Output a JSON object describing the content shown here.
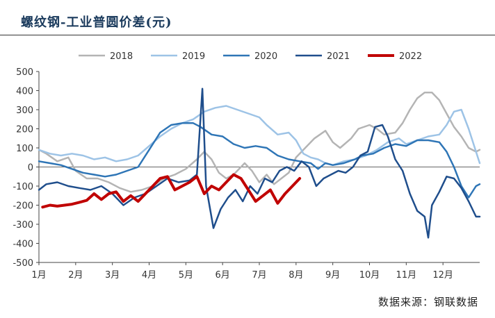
{
  "title": "螺纹钢-工业普圆价差(元)",
  "source": "数据来源：钢联数据",
  "chart_data": {
    "type": "line",
    "title": "螺纹钢-工业普圆价差(元)",
    "xlabel": "",
    "ylabel": "",
    "ylim": [
      -500,
      500
    ],
    "yticks": [
      "500",
      "400",
      "300",
      "200",
      "100",
      "0",
      "-100",
      "-200",
      "-300",
      "-400",
      "-500"
    ],
    "xlim": [
      1,
      13
    ],
    "xticks": [
      "1月",
      "2月",
      "3月",
      "4月",
      "5月",
      "6月",
      "7月",
      "8月",
      "9月",
      "10月",
      "11月",
      "12月"
    ],
    "grid": false,
    "legend_position": "top",
    "series": [
      {
        "name": "2018",
        "color": "#b4b4b4",
        "width": 2.5,
        "points": [
          [
            1.0,
            90
          ],
          [
            1.2,
            70
          ],
          [
            1.5,
            30
          ],
          [
            1.8,
            50
          ],
          [
            2.0,
            -20
          ],
          [
            2.3,
            -60
          ],
          [
            2.6,
            -60
          ],
          [
            2.9,
            -80
          ],
          [
            3.2,
            -110
          ],
          [
            3.5,
            -130
          ],
          [
            3.8,
            -120
          ],
          [
            4.1,
            -100
          ],
          [
            4.4,
            -60
          ],
          [
            4.7,
            -40
          ],
          [
            5.0,
            -10
          ],
          [
            5.3,
            40
          ],
          [
            5.5,
            80
          ],
          [
            5.7,
            40
          ],
          [
            5.9,
            -30
          ],
          [
            6.1,
            -60
          ],
          [
            6.3,
            -40
          ],
          [
            6.6,
            20
          ],
          [
            6.8,
            -20
          ],
          [
            7.0,
            -80
          ],
          [
            7.2,
            -40
          ],
          [
            7.4,
            -90
          ],
          [
            7.6,
            -60
          ],
          [
            7.8,
            -30
          ],
          [
            8.0,
            50
          ],
          [
            8.2,
            90
          ],
          [
            8.5,
            150
          ],
          [
            8.8,
            190
          ],
          [
            9.0,
            130
          ],
          [
            9.2,
            100
          ],
          [
            9.5,
            150
          ],
          [
            9.7,
            200
          ],
          [
            10.0,
            220
          ],
          [
            10.2,
            200
          ],
          [
            10.4,
            170
          ],
          [
            10.7,
            180
          ],
          [
            10.9,
            230
          ],
          [
            11.1,
            300
          ],
          [
            11.3,
            360
          ],
          [
            11.5,
            390
          ],
          [
            11.7,
            390
          ],
          [
            11.9,
            350
          ],
          [
            12.1,
            280
          ],
          [
            12.3,
            210
          ],
          [
            12.5,
            160
          ],
          [
            12.7,
            100
          ],
          [
            12.9,
            80
          ],
          [
            13.0,
            90
          ]
        ]
      },
      {
        "name": "2019",
        "color": "#9dc3e6",
        "width": 2.5,
        "points": [
          [
            1.0,
            90
          ],
          [
            1.3,
            70
          ],
          [
            1.6,
            60
          ],
          [
            1.9,
            70
          ],
          [
            2.2,
            60
          ],
          [
            2.5,
            40
          ],
          [
            2.8,
            50
          ],
          [
            3.1,
            30
          ],
          [
            3.4,
            40
          ],
          [
            3.7,
            60
          ],
          [
            4.0,
            110
          ],
          [
            4.3,
            160
          ],
          [
            4.6,
            200
          ],
          [
            4.9,
            230
          ],
          [
            5.2,
            250
          ],
          [
            5.5,
            290
          ],
          [
            5.8,
            310
          ],
          [
            6.1,
            320
          ],
          [
            6.4,
            300
          ],
          [
            6.7,
            280
          ],
          [
            7.0,
            260
          ],
          [
            7.2,
            220
          ],
          [
            7.5,
            170
          ],
          [
            7.8,
            180
          ],
          [
            8.0,
            140
          ],
          [
            8.2,
            70
          ],
          [
            8.4,
            50
          ],
          [
            8.6,
            40
          ],
          [
            8.8,
            20
          ],
          [
            9.0,
            10
          ],
          [
            9.3,
            30
          ],
          [
            9.6,
            40
          ],
          [
            9.9,
            60
          ],
          [
            10.2,
            90
          ],
          [
            10.5,
            130
          ],
          [
            10.8,
            150
          ],
          [
            11.0,
            120
          ],
          [
            11.3,
            140
          ],
          [
            11.6,
            160
          ],
          [
            11.9,
            170
          ],
          [
            12.1,
            220
          ],
          [
            12.3,
            290
          ],
          [
            12.5,
            300
          ],
          [
            12.7,
            200
          ],
          [
            12.9,
            80
          ],
          [
            13.0,
            20
          ]
        ]
      },
      {
        "name": "2020",
        "color": "#2e75b6",
        "width": 2.5,
        "points": [
          [
            1.0,
            30
          ],
          [
            1.3,
            20
          ],
          [
            1.6,
            10
          ],
          [
            1.9,
            -10
          ],
          [
            2.2,
            -30
          ],
          [
            2.5,
            -40
          ],
          [
            2.8,
            -50
          ],
          [
            3.1,
            -40
          ],
          [
            3.4,
            -20
          ],
          [
            3.7,
            0
          ],
          [
            4.0,
            90
          ],
          [
            4.3,
            180
          ],
          [
            4.6,
            220
          ],
          [
            4.9,
            230
          ],
          [
            5.2,
            230
          ],
          [
            5.4,
            210
          ],
          [
            5.7,
            170
          ],
          [
            6.0,
            160
          ],
          [
            6.3,
            120
          ],
          [
            6.6,
            100
          ],
          [
            6.9,
            110
          ],
          [
            7.2,
            100
          ],
          [
            7.5,
            60
          ],
          [
            7.8,
            40
          ],
          [
            8.1,
            30
          ],
          [
            8.4,
            20
          ],
          [
            8.6,
            -10
          ],
          [
            8.8,
            20
          ],
          [
            9.0,
            10
          ],
          [
            9.3,
            20
          ],
          [
            9.6,
            40
          ],
          [
            9.8,
            60
          ],
          [
            10.1,
            70
          ],
          [
            10.4,
            100
          ],
          [
            10.7,
            120
          ],
          [
            11.0,
            110
          ],
          [
            11.3,
            140
          ],
          [
            11.6,
            140
          ],
          [
            11.9,
            130
          ],
          [
            12.1,
            80
          ],
          [
            12.3,
            0
          ],
          [
            12.5,
            -100
          ],
          [
            12.7,
            -160
          ],
          [
            12.9,
            -100
          ],
          [
            13.0,
            -90
          ]
        ]
      },
      {
        "name": "2021",
        "color": "#1f4e8c",
        "width": 2.5,
        "points": [
          [
            1.0,
            -120
          ],
          [
            1.2,
            -90
          ],
          [
            1.5,
            -80
          ],
          [
            1.8,
            -100
          ],
          [
            2.1,
            -110
          ],
          [
            2.4,
            -120
          ],
          [
            2.7,
            -100
          ],
          [
            3.0,
            -140
          ],
          [
            3.3,
            -200
          ],
          [
            3.6,
            -160
          ],
          [
            3.9,
            -140
          ],
          [
            4.2,
            -100
          ],
          [
            4.5,
            -60
          ],
          [
            4.8,
            -80
          ],
          [
            5.1,
            -70
          ],
          [
            5.3,
            -40
          ],
          [
            5.45,
            410
          ],
          [
            5.55,
            -100
          ],
          [
            5.75,
            -320
          ],
          [
            5.95,
            -220
          ],
          [
            6.15,
            -160
          ],
          [
            6.35,
            -120
          ],
          [
            6.55,
            -180
          ],
          [
            6.75,
            -100
          ],
          [
            6.95,
            -140
          ],
          [
            7.15,
            -60
          ],
          [
            7.35,
            -80
          ],
          [
            7.55,
            -20
          ],
          [
            7.75,
            0
          ],
          [
            7.95,
            -20
          ],
          [
            8.15,
            30
          ],
          [
            8.35,
            0
          ],
          [
            8.55,
            -100
          ],
          [
            8.75,
            -60
          ],
          [
            8.95,
            -40
          ],
          [
            9.15,
            -20
          ],
          [
            9.35,
            -30
          ],
          [
            9.55,
            0
          ],
          [
            9.75,
            60
          ],
          [
            9.95,
            80
          ],
          [
            10.15,
            210
          ],
          [
            10.35,
            220
          ],
          [
            10.5,
            160
          ],
          [
            10.7,
            40
          ],
          [
            10.9,
            -20
          ],
          [
            11.1,
            -140
          ],
          [
            11.3,
            -230
          ],
          [
            11.5,
            -260
          ],
          [
            11.6,
            -370
          ],
          [
            11.7,
            -200
          ],
          [
            11.9,
            -130
          ],
          [
            12.1,
            -50
          ],
          [
            12.3,
            -60
          ],
          [
            12.5,
            -110
          ],
          [
            12.7,
            -180
          ],
          [
            12.9,
            -260
          ],
          [
            13.0,
            -260
          ]
        ]
      },
      {
        "name": "2022",
        "color": "#c00000",
        "width": 4,
        "points": [
          [
            1.1,
            -210
          ],
          [
            1.3,
            -200
          ],
          [
            1.5,
            -205
          ],
          [
            1.7,
            -200
          ],
          [
            1.9,
            -195
          ],
          [
            2.1,
            -185
          ],
          [
            2.3,
            -175
          ],
          [
            2.5,
            -140
          ],
          [
            2.7,
            -170
          ],
          [
            2.9,
            -140
          ],
          [
            3.1,
            -130
          ],
          [
            3.3,
            -180
          ],
          [
            3.5,
            -150
          ],
          [
            3.7,
            -180
          ],
          [
            3.9,
            -140
          ],
          [
            4.1,
            -100
          ],
          [
            4.3,
            -60
          ],
          [
            4.5,
            -50
          ],
          [
            4.7,
            -120
          ],
          [
            4.9,
            -100
          ],
          [
            5.1,
            -80
          ],
          [
            5.3,
            -50
          ],
          [
            5.5,
            -140
          ],
          [
            5.7,
            -100
          ],
          [
            5.9,
            -120
          ],
          [
            6.1,
            -80
          ],
          [
            6.3,
            -40
          ],
          [
            6.5,
            -60
          ],
          [
            6.7,
            -120
          ],
          [
            6.9,
            -180
          ],
          [
            7.1,
            -150
          ],
          [
            7.3,
            -120
          ],
          [
            7.5,
            -190
          ],
          [
            7.7,
            -140
          ],
          [
            7.9,
            -100
          ],
          [
            8.1,
            -60
          ]
        ]
      }
    ]
  }
}
